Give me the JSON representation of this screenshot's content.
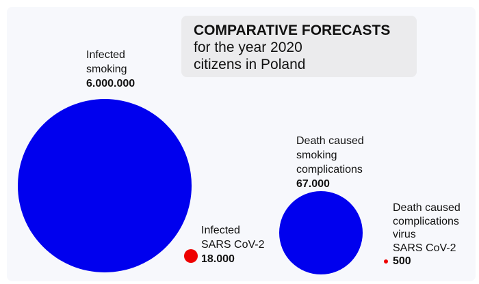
{
  "chart_data": {
    "type": "bubble",
    "title": "COMPARATIVE FORECASTS",
    "subtitle": [
      "for the year 2020",
      "citizens in Poland"
    ],
    "series": [
      {
        "label": [
          "Infected",
          "smoking"
        ],
        "value_text": "6.000.000",
        "value": 6000000,
        "color": "#0000ee"
      },
      {
        "label": [
          "Infected",
          "SARS CoV-2"
        ],
        "value_text": "18.000",
        "value": 18000,
        "color": "#ee0000"
      },
      {
        "label": [
          "Death caused",
          "smoking",
          "complications"
        ],
        "value_text": "67.000",
        "value": 67000,
        "color": "#0000ee"
      },
      {
        "label": [
          "Death caused",
          "complications",
          "virus",
          "SARS CoV-2"
        ],
        "value_text": "500",
        "value": 500,
        "color": "#ee0000"
      }
    ]
  }
}
